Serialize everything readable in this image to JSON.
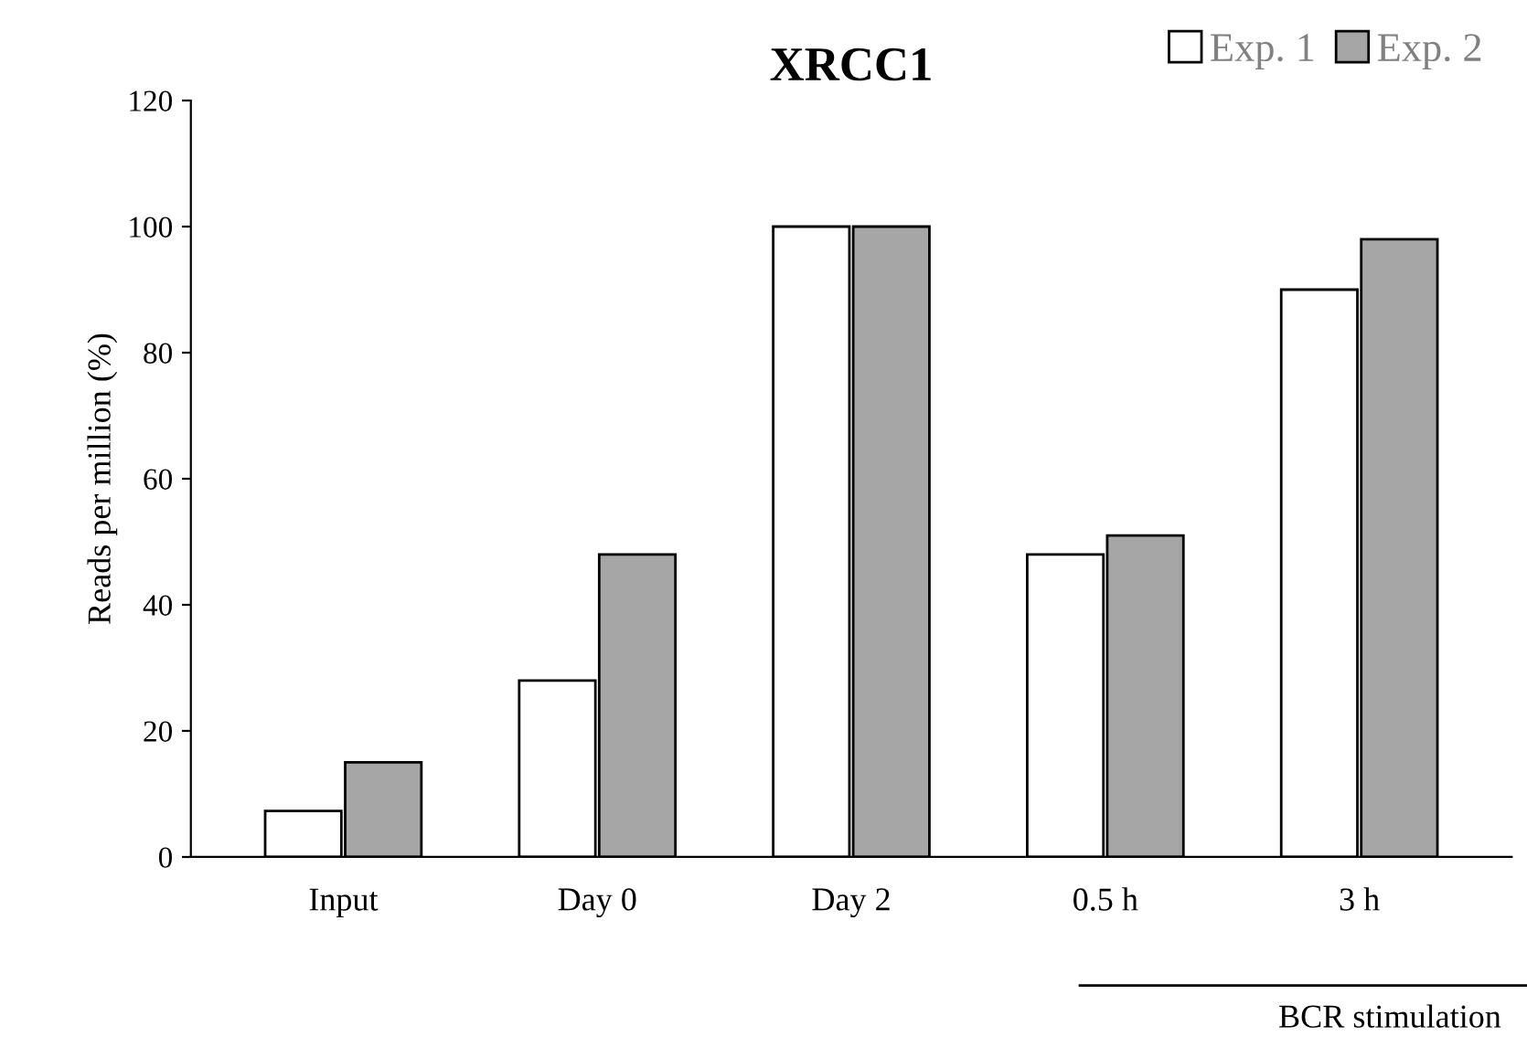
{
  "chart_data": {
    "type": "bar",
    "title": "XRCC1",
    "ylabel": "Reads per million (%)",
    "categories": [
      "Input",
      "Day 0",
      "Day 2",
      "0.5 h",
      "3 h"
    ],
    "series": [
      {
        "name": "Exp. 1",
        "color": "#ffffff",
        "values": [
          7.3,
          28,
          100,
          48,
          90
        ]
      },
      {
        "name": "Exp. 2",
        "color": "#a6a6a6",
        "values": [
          15,
          48,
          100,
          51,
          98
        ]
      }
    ],
    "ylim": [
      0,
      120
    ],
    "yticks": [
      0,
      20,
      40,
      60,
      80,
      100,
      120
    ],
    "grid": false,
    "legend": "top right",
    "annotations": [
      "BCR stimulation"
    ]
  }
}
